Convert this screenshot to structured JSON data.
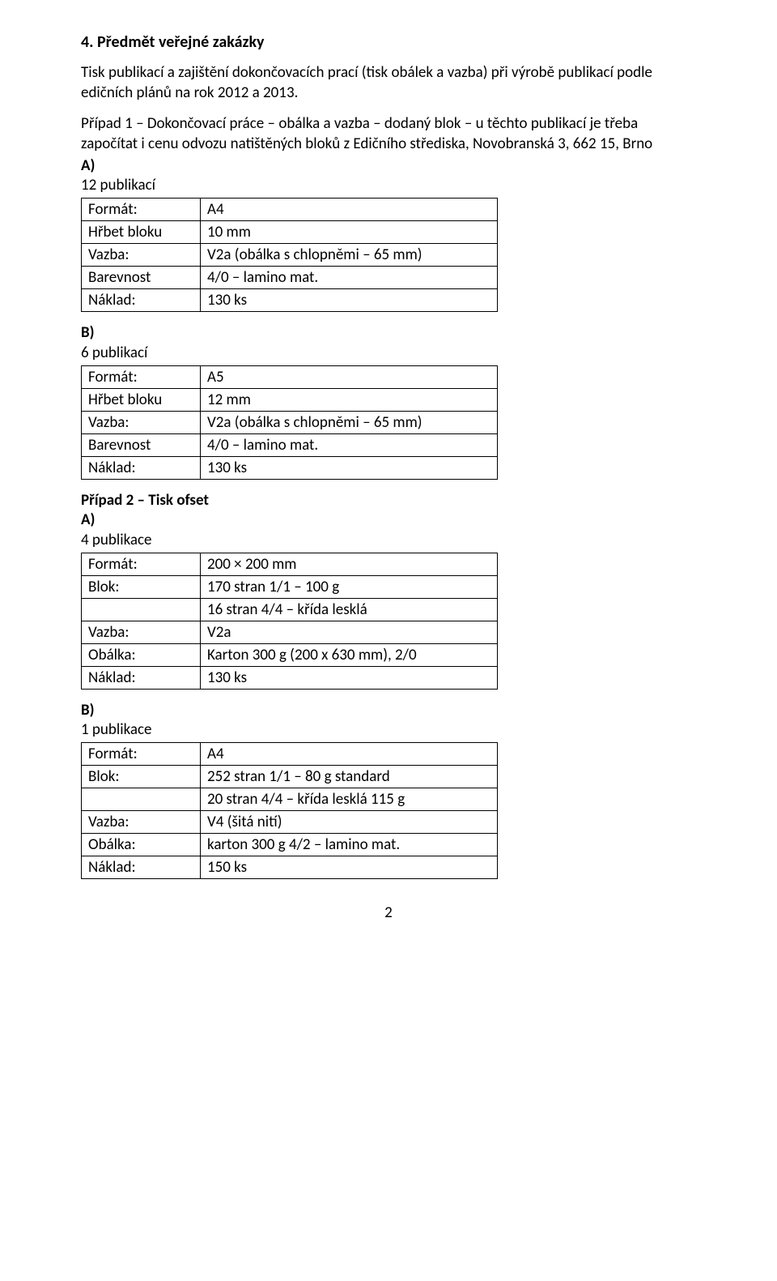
{
  "section": {
    "title": "4. Předmět veřejné zakázky",
    "intro": "Tisk publikací a zajištění dokončovacích prací (tisk obálek a vazba) při výrobě publikací podle edičních plánů na rok 2012 a 2013.",
    "case1_intro": "Případ 1 – Dokončovací práce – obálka a vazba – dodaný blok – u těchto publikací je třeba započítat i cenu odvozu natištěných bloků z Edičního střediska, Novobranská 3, 662 15, Brno"
  },
  "labels": {
    "format": "Formát:",
    "hrbet": "Hřbet bloku",
    "vazba": "Vazba:",
    "barevnost": "Barevnost",
    "naklad": "Náklad:",
    "blok": "Blok:",
    "obalka": "Obálka:"
  },
  "case1_a": {
    "letter": "A)",
    "count": "12 publikací",
    "format": "A4",
    "hrbet": "10 mm",
    "vazba": "V2a (obálka s chlopněmi – 65 mm)",
    "barevnost": "4/0 – lamino mat.",
    "naklad": "130 ks"
  },
  "case1_b": {
    "letter": "B)",
    "count": "6 publikací",
    "format": "A5",
    "hrbet": "12 mm",
    "vazba": "V2a (obálka s chlopněmi – 65 mm)",
    "barevnost": "4/0 – lamino mat.",
    "naklad": "130 ks"
  },
  "case2": {
    "title": "Případ 2 – Tisk ofset"
  },
  "case2_a": {
    "letter": "A)",
    "count": "4 publikace",
    "format": "200 × 200 mm",
    "blok1": "170 stran 1/1 – 100 g",
    "blok2": "16 stran  4/4 – křída lesklá",
    "vazba": "V2a",
    "obalka": "Karton 300 g (200 x 630 mm), 2/0",
    "naklad": "130 ks"
  },
  "case2_b": {
    "letter": "B)",
    "count": "1 publikace",
    "format": "A4",
    "blok1": "252 stran 1/1 – 80 g standard",
    "blok2": "20 stran 4/4 – křída lesklá 115 g",
    "vazba": "V4 (šitá nití)",
    "obalka": "karton 300 g 4/2 – lamino mat.",
    "naklad": "150 ks"
  },
  "page_number": "2"
}
